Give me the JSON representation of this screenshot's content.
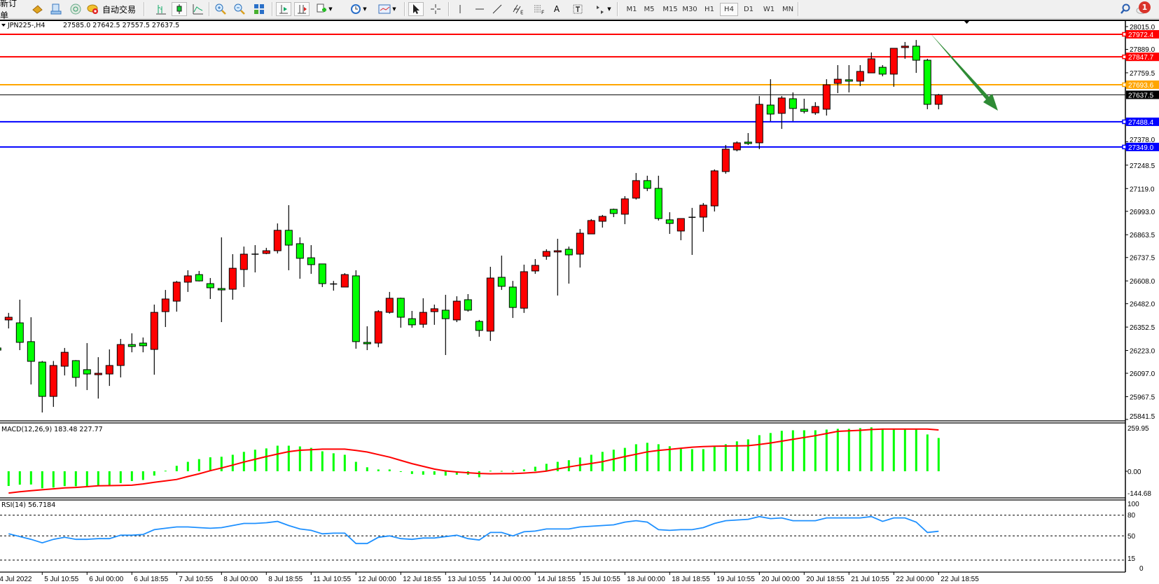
{
  "toolbar": {
    "new_order": "新订单",
    "auto_trading": "自动交易",
    "timeframes": [
      "M1",
      "M5",
      "M15",
      "M30",
      "H1",
      "H4",
      "D1",
      "W1",
      "MN"
    ],
    "active_timeframe": "H4",
    "notification_count": "1",
    "text_tool": "A"
  },
  "chart": {
    "symbol_info": "JPN225-,H4",
    "ohlc_text": "27585.0 27642.5 27557.5 27637.5",
    "price_ticks": [
      "28015.0",
      "27889.0",
      "27759.5",
      "27378.0",
      "27248.5",
      "27119.0",
      "26993.0",
      "26863.5",
      "26737.5",
      "26608.0",
      "26482.0",
      "26352.5",
      "26223.0",
      "26097.0",
      "25967.5",
      "25841.5"
    ],
    "levels": [
      {
        "label": "27972.4",
        "price": 27972.4,
        "color": "#ff0000"
      },
      {
        "label": "27847.7",
        "price": 27847.7,
        "color": "#ff0000"
      },
      {
        "label": "27693.6",
        "price": 27693.6,
        "color": "#ffa500"
      },
      {
        "label": "27488.4",
        "price": 27488.4,
        "color": "#0000ff"
      },
      {
        "label": "27349.0",
        "price": 27349.0,
        "color": "#0000ff"
      }
    ],
    "bid": {
      "label": "27637.5",
      "price": 27637.5,
      "color": "#000000"
    },
    "arrow_color": "#2e8b35",
    "bull_color": "#ff0000",
    "bear_color": "#00ff00",
    "time_labels": [
      "4 Jul 2022",
      "5 Jul 10:55",
      "6 Jul 00:00",
      "6 Jul 18:55",
      "7 Jul 10:55",
      "8 Jul 00:00",
      "8 Jul 18:55",
      "11 Jul 10:55",
      "12 Jul 00:00",
      "12 Jul 18:55",
      "13 Jul 10:55",
      "14 Jul 00:00",
      "14 Jul 18:55",
      "15 Jul 10:55",
      "18 Jul 00:00",
      "18 Jul 18:55",
      "19 Jul 10:55",
      "20 Jul 00:00",
      "20 Jul 18:55",
      "21 Jul 10:55",
      "22 Jul 00:00",
      "22 Jul 18:55"
    ]
  },
  "macd": {
    "label": "MACD(12,26,9) 183.48 227.77",
    "scale": [
      "259.95",
      "0.00",
      "-144.68"
    ],
    "hist_color": "#00ff00",
    "signal_color": "#ff0000"
  },
  "rsi": {
    "label": "RSI(14) 56.7184",
    "levels": [
      "100",
      "80",
      "50",
      "15",
      "0"
    ],
    "line_color": "#1e90ff"
  },
  "chart_data": {
    "type": "candlestick",
    "ylim": [
      25841.5,
      28015.0
    ],
    "candles_ohlc": [
      [
        26237,
        26250,
        26220,
        26225
      ],
      [
        26392,
        26431,
        26345,
        26407
      ],
      [
        26376,
        26504,
        26225,
        26268
      ],
      [
        26272,
        26407,
        26035,
        26163
      ],
      [
        26159,
        26165,
        25880,
        25969
      ],
      [
        25969,
        26165,
        25911,
        26140
      ],
      [
        26136,
        26237,
        26085,
        26213
      ],
      [
        26167,
        26170,
        26023,
        26074
      ],
      [
        26117,
        26264,
        26004,
        26093
      ],
      [
        26089,
        26186,
        25957,
        26097
      ],
      [
        26093,
        26229,
        26027,
        26140
      ],
      [
        26140,
        26287,
        26074,
        26256
      ],
      [
        26256,
        26318,
        26213,
        26245
      ],
      [
        26264,
        26295,
        26213,
        26249
      ],
      [
        26229,
        26477,
        26089,
        26434
      ],
      [
        26438,
        26558,
        26353,
        26508
      ],
      [
        26496,
        26608,
        26438,
        26601
      ],
      [
        26601,
        26667,
        26547,
        26636
      ],
      [
        26643,
        26663,
        26605,
        26608
      ],
      [
        26593,
        26624,
        26508,
        26570
      ],
      [
        26566,
        26849,
        26380,
        26558
      ],
      [
        26562,
        26756,
        26504,
        26678
      ],
      [
        26671,
        26798,
        26574,
        26756
      ],
      [
        26756,
        26806,
        26655,
        26754
      ],
      [
        26760,
        26791,
        26756,
        26775
      ],
      [
        26775,
        26926,
        26760,
        26888
      ],
      [
        26888,
        27027,
        26667,
        26806
      ],
      [
        26814,
        26849,
        26620,
        26733
      ],
      [
        26736,
        26806,
        26647,
        26698
      ],
      [
        26702,
        26702,
        26574,
        26593
      ],
      [
        26589,
        26608,
        26554,
        26591
      ],
      [
        26574,
        26651,
        26574,
        26643
      ],
      [
        26636,
        26667,
        26233,
        26272
      ],
      [
        26268,
        26357,
        26225,
        26260
      ],
      [
        26264,
        26446,
        26241,
        26438
      ],
      [
        26434,
        26547,
        26427,
        26512
      ],
      [
        26512,
        26515,
        26349,
        26407
      ],
      [
        26399,
        26442,
        26349,
        26365
      ],
      [
        26368,
        26512,
        26349,
        26434
      ],
      [
        26438,
        26477,
        26365,
        26454
      ],
      [
        26446,
        26531,
        26198,
        26399
      ],
      [
        26392,
        26523,
        26380,
        26496
      ],
      [
        26504,
        26535,
        26438,
        26446
      ],
      [
        26384,
        26392,
        26299,
        26334
      ],
      [
        26330,
        26686,
        26276,
        26624
      ],
      [
        26628,
        26748,
        26558,
        26578
      ],
      [
        26574,
        26608,
        26403,
        26461
      ],
      [
        26457,
        26698,
        26431,
        26659
      ],
      [
        26663,
        26729,
        26647,
        26694
      ],
      [
        26744,
        26783,
        26725,
        26771
      ],
      [
        26768,
        26841,
        26527,
        26775
      ],
      [
        26783,
        26798,
        26593,
        26752
      ],
      [
        26756,
        26895,
        26682,
        26872
      ],
      [
        26868,
        26950,
        26868,
        26942
      ],
      [
        26938,
        26973,
        26903,
        26965
      ],
      [
        27004,
        27008,
        26961,
        26981
      ],
      [
        26977,
        27077,
        26922,
        27062
      ],
      [
        27066,
        27205,
        27058,
        27163
      ],
      [
        27163,
        27190,
        27105,
        27120
      ],
      [
        27120,
        27190,
        26942,
        26953
      ],
      [
        26946,
        26988,
        26868,
        26926
      ],
      [
        26884,
        26953,
        26833,
        26953
      ],
      [
        26957,
        27012,
        26752,
        26960
      ],
      [
        26961,
        27039,
        26880,
        27027
      ],
      [
        27023,
        27225,
        26992,
        27217
      ],
      [
        27213,
        27360,
        27201,
        27337
      ],
      [
        27333,
        27380,
        27325,
        27372
      ],
      [
        27376,
        27426,
        27360,
        27368
      ],
      [
        27372,
        27631,
        27337,
        27585
      ],
      [
        27581,
        27724,
        27492,
        27531
      ],
      [
        27535,
        27631,
        27449,
        27620
      ],
      [
        27616,
        27651,
        27492,
        27562
      ],
      [
        27558,
        27616,
        27535,
        27546
      ],
      [
        27538,
        27597,
        27527,
        27573
      ],
      [
        27558,
        27724,
        27523,
        27693
      ],
      [
        27701,
        27802,
        27647,
        27724
      ],
      [
        27721,
        27802,
        27651,
        27713
      ],
      [
        27713,
        27802,
        27686,
        27767
      ],
      [
        27759,
        27872,
        27759,
        27837
      ],
      [
        27790,
        27802,
        27740,
        27752
      ],
      [
        27752,
        27895,
        27682,
        27895
      ],
      [
        27899,
        27930,
        27837,
        27907
      ],
      [
        27907,
        27941,
        27759,
        27829
      ],
      [
        27829,
        27837,
        27558,
        27585
      ],
      [
        27585,
        27642.5,
        27557.5,
        27637.5
      ]
    ],
    "macd_hist": [
      null,
      -81,
      -74,
      -73,
      -94,
      -90,
      -82,
      -83,
      -81,
      -83,
      -77,
      -65,
      -54,
      -48,
      -24,
      3,
      30,
      52,
      67,
      77,
      80,
      91,
      107,
      119,
      126,
      141,
      141,
      137,
      129,
      110,
      99,
      91,
      52,
      22,
      10,
      10,
      -1,
      -15,
      -19,
      -19,
      -24,
      -19,
      -19,
      -33,
      3,
      2,
      2,
      10,
      25,
      41,
      52,
      61,
      76,
      91,
      107,
      119,
      129,
      149,
      157,
      149,
      138,
      129,
      122,
      122,
      138,
      149,
      165,
      176,
      199,
      211,
      223,
      226,
      226,
      226,
      230,
      234,
      234,
      238,
      242,
      234,
      234,
      234,
      234,
      203,
      183.48
    ],
    "macd_signal": [
      null,
      -120,
      -113,
      -107,
      -102,
      -97,
      -92,
      -89,
      -85,
      -80,
      -79,
      -78,
      -77,
      -70,
      -61,
      -53,
      -45,
      -29,
      -14,
      3,
      18,
      34,
      51,
      66,
      81,
      95,
      108,
      116,
      119,
      122,
      122,
      122,
      115,
      106,
      92,
      78,
      60,
      42,
      27,
      12,
      2,
      -4,
      -8,
      -12,
      -14,
      -13,
      -13,
      -10,
      -6,
      1,
      13,
      24,
      34,
      43,
      53,
      67,
      81,
      94,
      107,
      115,
      121,
      127,
      133,
      136,
      138,
      139,
      140,
      141,
      148,
      156,
      166,
      176,
      186,
      196,
      208,
      220,
      223,
      226,
      230,
      233,
      233,
      233,
      233,
      233,
      227.77
    ],
    "macd_ylim": [
      -144.68,
      259.95
    ],
    "rsi": [
      null,
      53,
      49,
      45,
      40,
      45,
      48,
      45,
      45,
      46,
      46,
      51,
      51,
      52,
      59,
      61,
      63,
      63,
      62,
      61,
      62,
      65,
      68,
      68,
      69,
      71,
      65,
      60,
      58,
      53,
      54,
      54,
      39,
      39,
      48,
      50,
      46,
      45,
      47,
      47,
      49,
      51,
      46,
      44,
      55,
      55,
      50,
      56,
      57,
      60,
      60,
      60,
      63,
      64,
      65,
      66,
      70,
      72,
      70,
      59,
      58,
      59,
      59,
      62,
      68,
      72,
      73,
      74,
      78,
      75,
      76,
      72,
      72,
      72,
      76,
      76,
      76,
      76,
      78,
      71,
      76,
      76,
      70,
      55,
      56.7184
    ],
    "rsi_ylim": [
      0,
      100
    ]
  }
}
